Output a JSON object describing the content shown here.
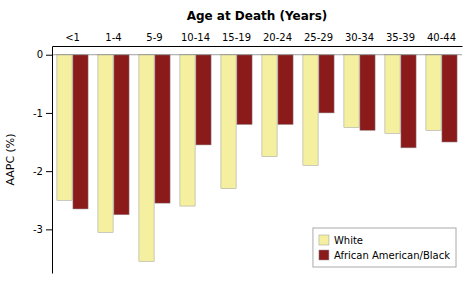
{
  "chart_data": {
    "type": "bar",
    "title": "Age at Death (Years)",
    "ylabel": "AAPC (%)",
    "categories": [
      "<1",
      "1-4",
      "5-9",
      "10-14",
      "15-19",
      "20-24",
      "25-29",
      "30-34",
      "35-39",
      "40-44"
    ],
    "series": [
      {
        "name": "White",
        "color": "#f5f0a0",
        "values": [
          -2.5,
          -3.05,
          -3.55,
          -2.6,
          -2.3,
          -1.75,
          -1.9,
          -1.25,
          -1.35,
          -1.3
        ]
      },
      {
        "name": "African American/Black",
        "color": "#8b1a1a",
        "values": [
          -2.65,
          -2.75,
          -2.55,
          -1.55,
          -1.2,
          -1.2,
          -1.0,
          -1.3,
          -1.6,
          -1.5
        ]
      }
    ],
    "ylim": [
      -3.75,
      0.15
    ],
    "yticks": [
      0,
      -1,
      -2,
      -3
    ],
    "grid": false,
    "legend": "lower right"
  }
}
